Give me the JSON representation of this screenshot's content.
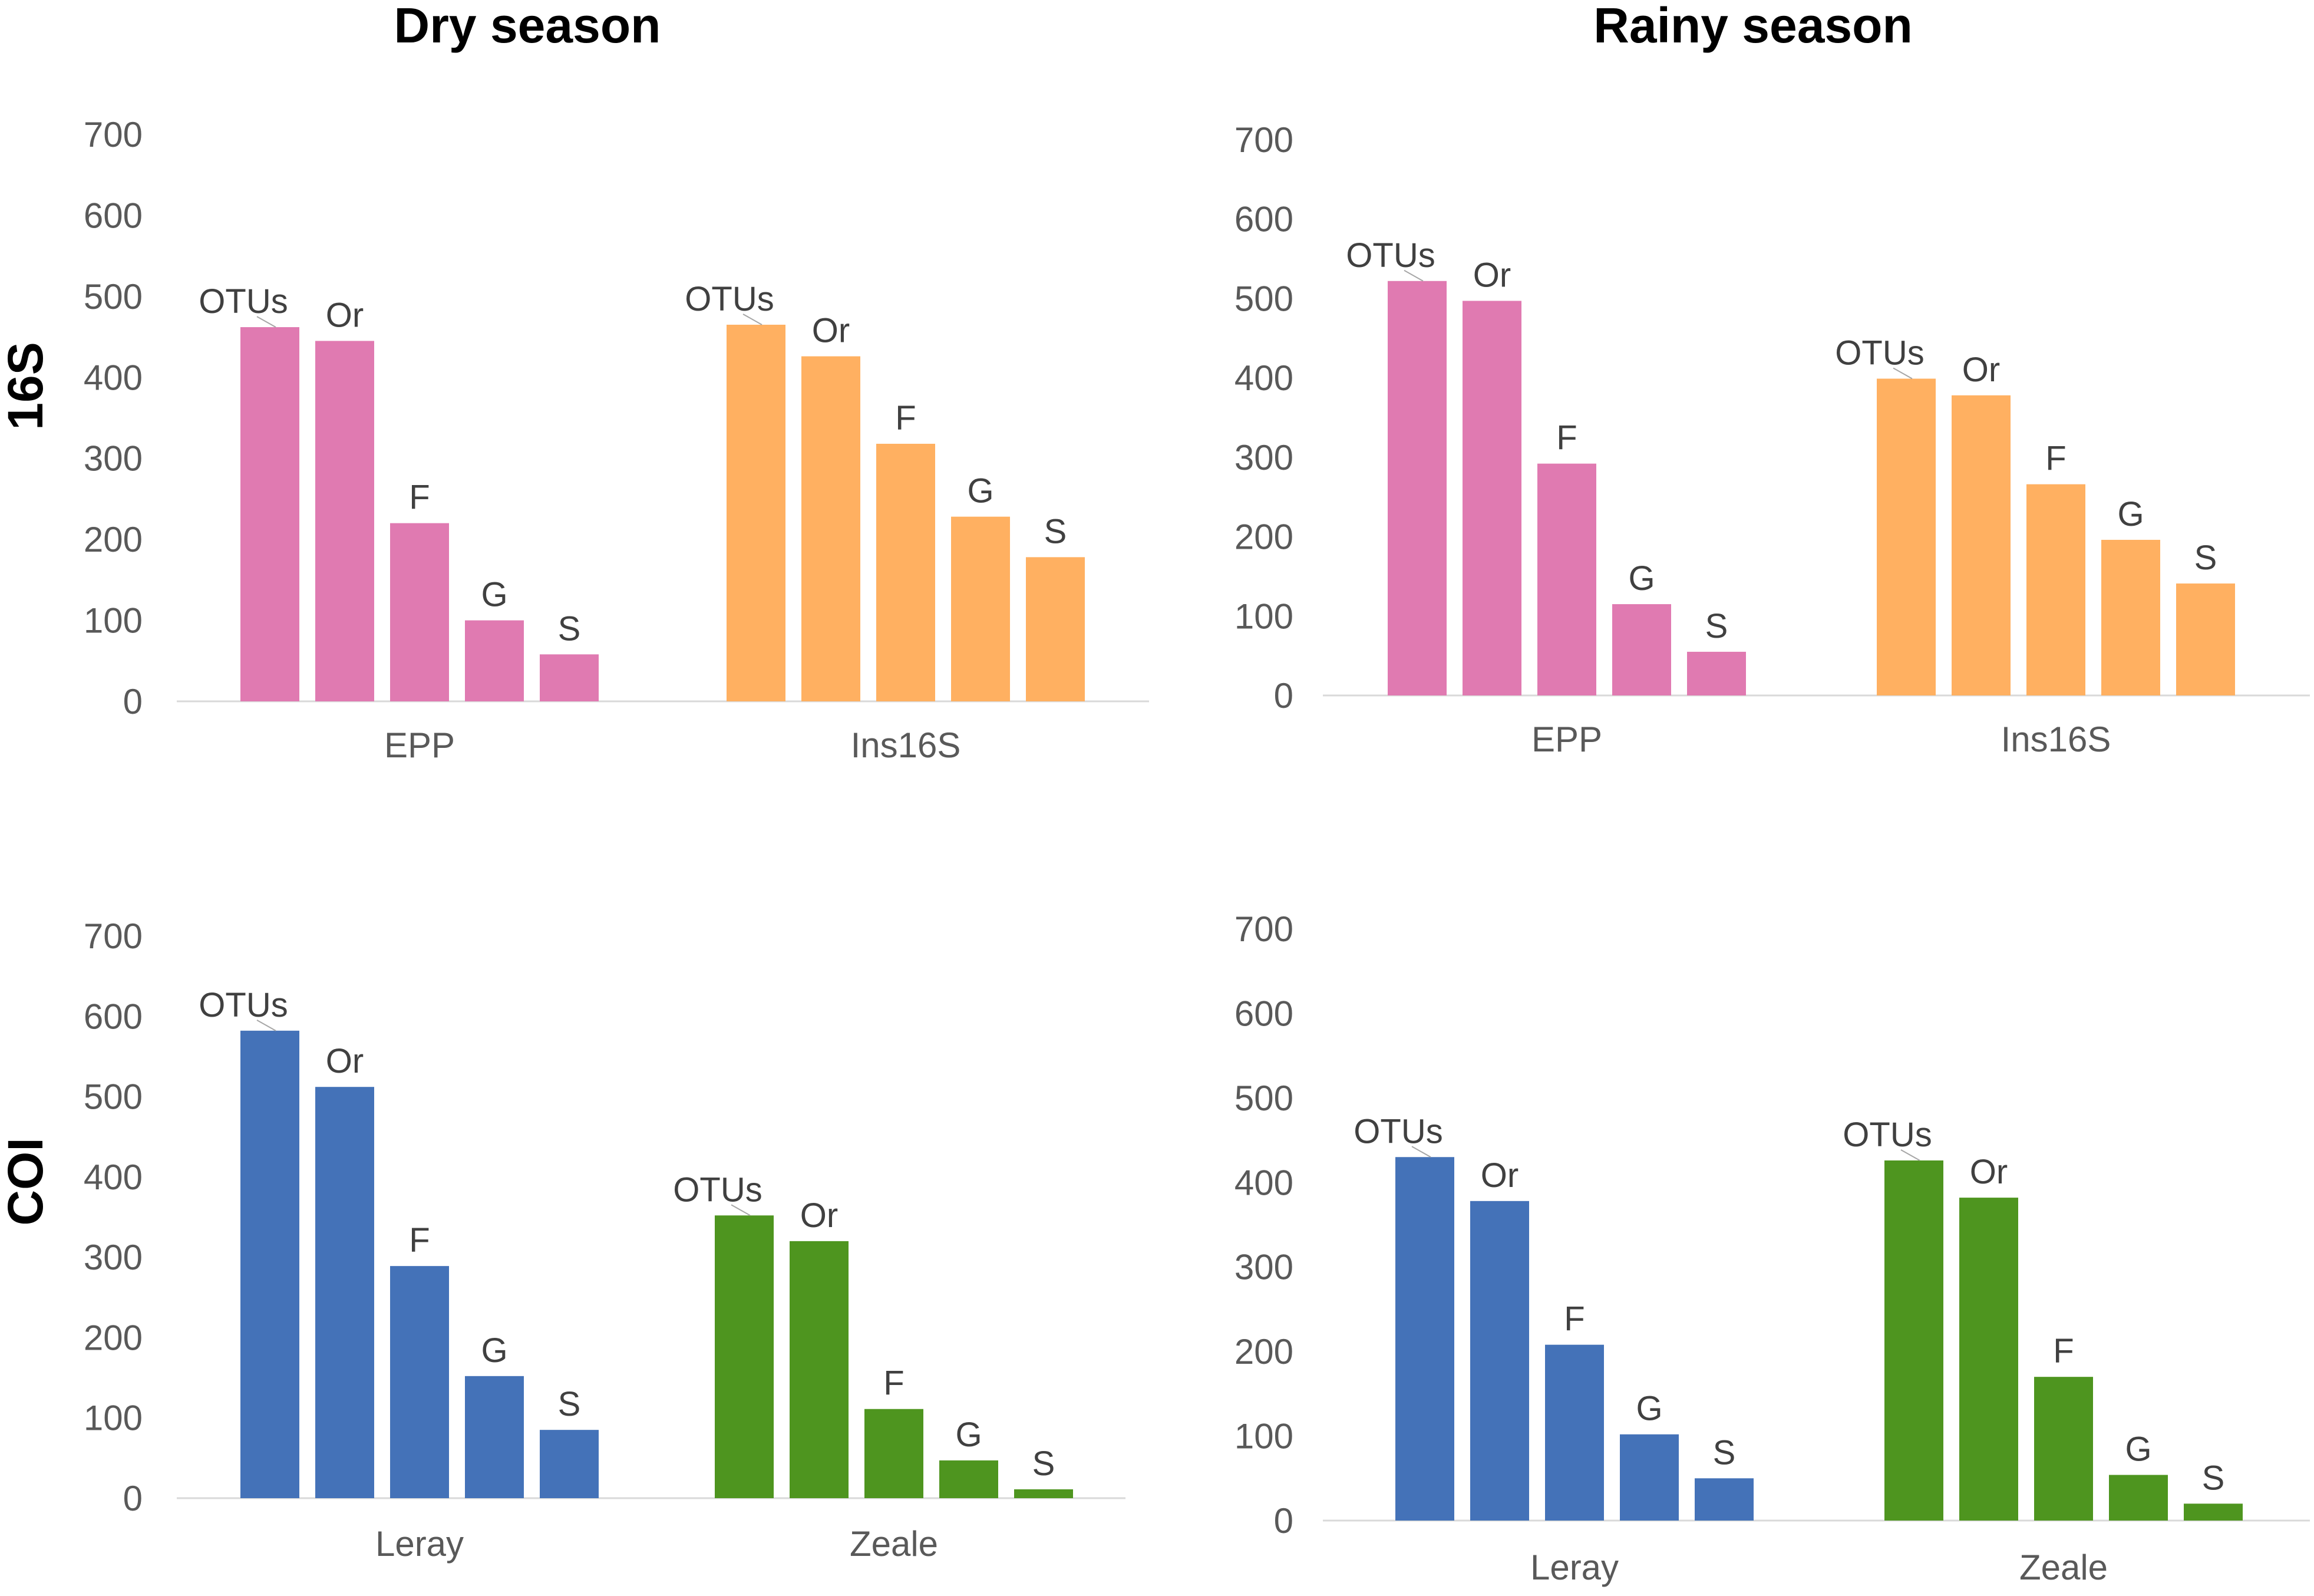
{
  "column_titles": [
    "Dry season",
    "Rainy season"
  ],
  "row_labels": [
    "16S",
    "COI"
  ],
  "bar_labels": [
    "OTUs",
    "Or",
    "F",
    "G",
    "S"
  ],
  "colors": {
    "EPP": "#e07ab1",
    "Ins16S": "#ffb061",
    "Leray": "#4472b8",
    "Zeale": "#4e951f"
  },
  "chart_data": [
    {
      "type": "bar",
      "title": "Dry season",
      "row": "16S",
      "ylim": [
        0,
        700
      ],
      "yticks": [
        0,
        100,
        200,
        300,
        400,
        500,
        600,
        700
      ],
      "groups": [
        {
          "name": "EPP",
          "color": "#e07ab1",
          "categories": [
            "OTUs",
            "Or",
            "F",
            "G",
            "S"
          ],
          "values": [
            462,
            445,
            220,
            100,
            58
          ]
        },
        {
          "name": "Ins16S",
          "color": "#ffb061",
          "categories": [
            "OTUs",
            "Or",
            "F",
            "G",
            "S"
          ],
          "values": [
            465,
            426,
            318,
            228,
            178
          ]
        }
      ]
    },
    {
      "type": "bar",
      "title": "Rainy season",
      "row": "16S",
      "ylim": [
        0,
        700
      ],
      "yticks": [
        0,
        100,
        200,
        300,
        400,
        500,
        600,
        700
      ],
      "groups": [
        {
          "name": "EPP",
          "color": "#e07ab1",
          "categories": [
            "OTUs",
            "Or",
            "F",
            "G",
            "S"
          ],
          "values": [
            522,
            497,
            292,
            115,
            55
          ]
        },
        {
          "name": "Ins16S",
          "color": "#ffb061",
          "categories": [
            "OTUs",
            "Or",
            "F",
            "G",
            "S"
          ],
          "values": [
            399,
            378,
            266,
            196,
            141
          ]
        }
      ]
    },
    {
      "type": "bar",
      "title": "Dry season",
      "row": "COI",
      "ylim": [
        0,
        700
      ],
      "yticks": [
        0,
        100,
        200,
        300,
        400,
        500,
        600,
        700
      ],
      "groups": [
        {
          "name": "Leray",
          "color": "#4472b8",
          "categories": [
            "OTUs",
            "Or",
            "F",
            "G",
            "S"
          ],
          "values": [
            582,
            512,
            289,
            152,
            85
          ]
        },
        {
          "name": "Zeale",
          "color": "#4e951f",
          "categories": [
            "OTUs",
            "Or",
            "F",
            "G",
            "S"
          ],
          "values": [
            352,
            320,
            111,
            47,
            11
          ]
        }
      ]
    },
    {
      "type": "bar",
      "title": "Rainy season",
      "row": "COI",
      "ylim": [
        0,
        700
      ],
      "yticks": [
        0,
        100,
        200,
        300,
        400,
        500,
        600,
        700
      ],
      "groups": [
        {
          "name": "Leray",
          "color": "#4472b8",
          "categories": [
            "OTUs",
            "Or",
            "F",
            "G",
            "S"
          ],
          "values": [
            430,
            378,
            208,
            102,
            50
          ]
        },
        {
          "name": "Zeale",
          "color": "#4e951f",
          "categories": [
            "OTUs",
            "Or",
            "F",
            "G",
            "S"
          ],
          "values": [
            426,
            382,
            170,
            54,
            20
          ]
        }
      ]
    }
  ]
}
